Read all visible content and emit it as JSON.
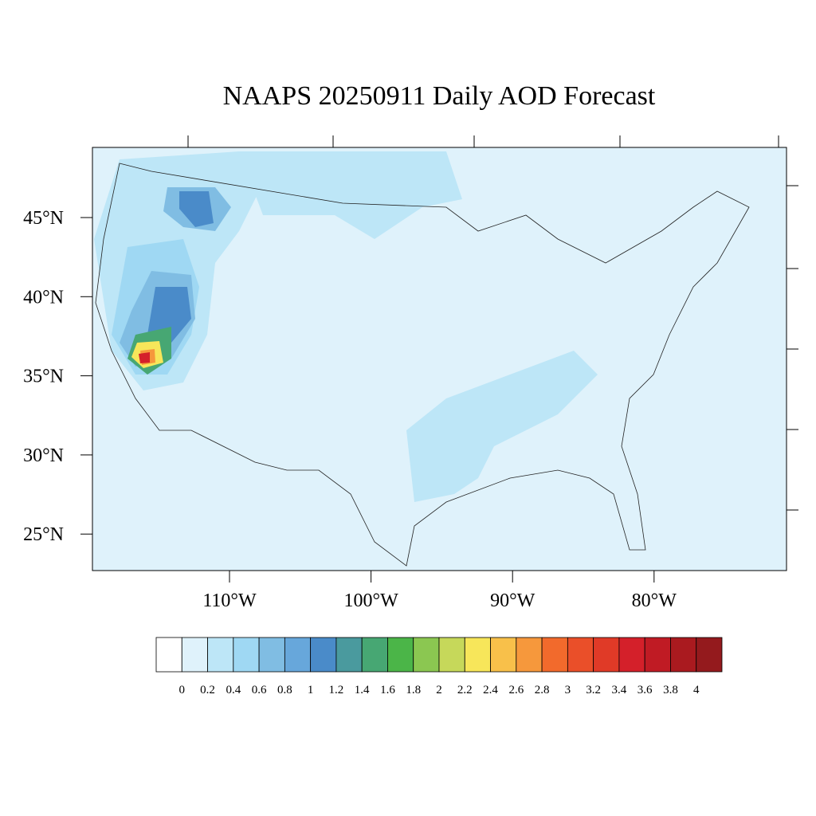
{
  "title": "NAAPS 20250911 Daily AOD Forecast",
  "lat_ticks": [
    {
      "value": 45,
      "label": "45°N"
    },
    {
      "value": 40,
      "label": "40°N"
    },
    {
      "value": 35,
      "label": "35°N"
    },
    {
      "value": 30,
      "label": "30°N"
    },
    {
      "value": 25,
      "label": "25°N"
    }
  ],
  "lon_ticks": [
    {
      "value": -110,
      "label": "110°W"
    },
    {
      "value": -100,
      "label": "100°W"
    },
    {
      "value": -90,
      "label": "90°W"
    },
    {
      "value": -80,
      "label": "80°W"
    }
  ],
  "colorbar": {
    "levels": [
      0,
      0.2,
      0.4,
      0.6,
      0.8,
      1,
      1.2,
      1.4,
      1.6,
      1.8,
      2,
      2.2,
      2.4,
      2.6,
      2.8,
      3,
      3.2,
      3.4,
      3.6,
      3.8,
      4
    ],
    "colors": [
      "#ffffff",
      "#dff2fb",
      "#bde6f7",
      "#9fd8f3",
      "#80bde3",
      "#67a7db",
      "#4a8bc9",
      "#4a9a9e",
      "#47a773",
      "#4bb548",
      "#8bc751",
      "#c6d85a",
      "#f7e65a",
      "#f8c04a",
      "#f6983c",
      "#f26a2c",
      "#ea4f29",
      "#e03a27",
      "#d4202a",
      "#c01b24",
      "#aa1a1f",
      "#941a1d"
    ]
  }
}
